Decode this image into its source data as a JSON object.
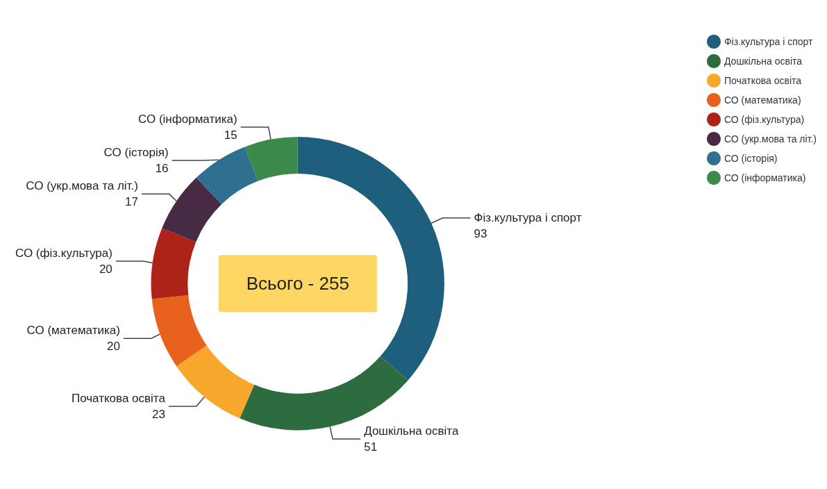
{
  "chart_data": {
    "type": "donut",
    "categories": [
      "Фіз.культура і спорт",
      "Дошкільна освіта",
      "Початкова освіта",
      "СО (математика)",
      "СО (фіз.культура)",
      "СО (укр.мова та літ.)",
      "СО (історія)",
      "СО (інформатика)"
    ],
    "values": [
      93,
      51,
      23,
      20,
      20,
      17,
      16,
      15
    ],
    "colors": [
      "#1e5f7e",
      "#2d6c3f",
      "#f6a72c",
      "#e9621d",
      "#ad2318",
      "#472a44",
      "#2f6f90",
      "#3b8a4c"
    ],
    "data_labels": true,
    "legend": "top right",
    "annotations": [
      "Всього - 255"
    ]
  }
}
